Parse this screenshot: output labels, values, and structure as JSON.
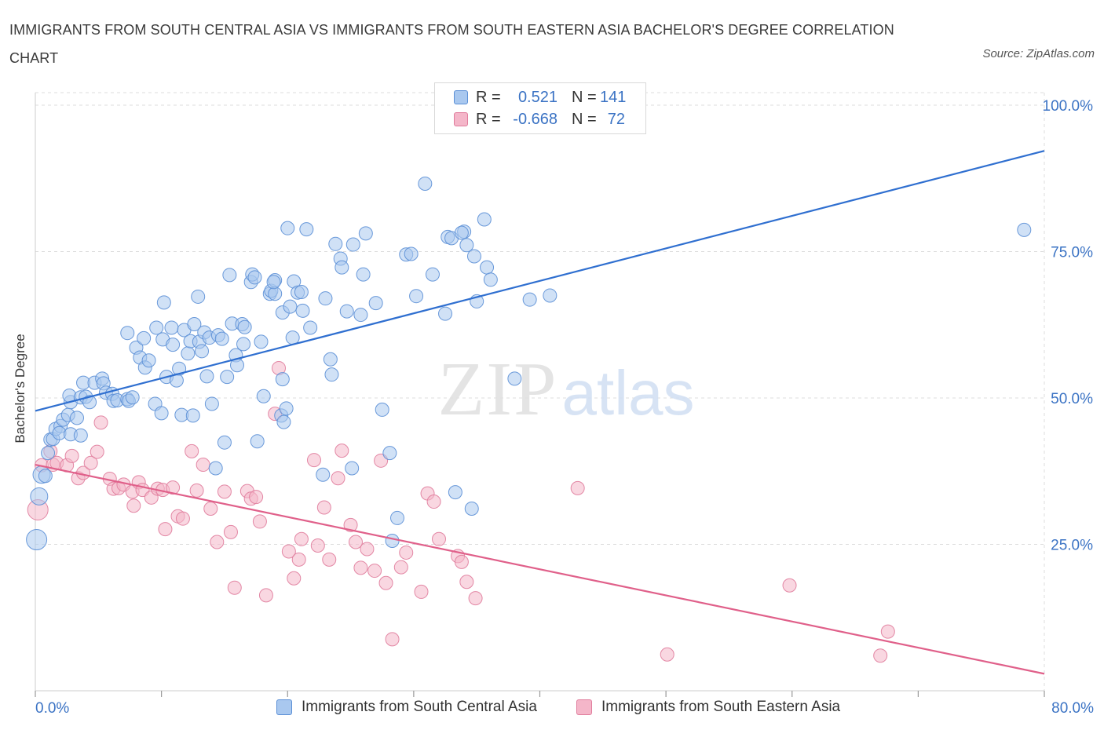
{
  "title": "IMMIGRANTS FROM SOUTH CENTRAL ASIA VS IMMIGRANTS FROM SOUTH EASTERN ASIA BACHELOR'S DEGREE CORRELATION CHART",
  "source": "Source: ZipAtlas.com",
  "watermark": {
    "zip": "ZIP",
    "atlas": "atlas"
  },
  "colors": {
    "blue_fill": "#a9c8ef",
    "blue_stroke": "#5b8fd6",
    "blue_line": "#2f6fd0",
    "blue_text": "#3b73c4",
    "pink_fill": "#f4b6c9",
    "pink_stroke": "#e07c9c",
    "pink_line": "#e0608a",
    "grid": "#dddddd",
    "axis": "#cccccc"
  },
  "legend_top": {
    "rows": [
      {
        "r_label": "R =",
        "r_value": "0.521",
        "n_label": "N =",
        "n_value": "141",
        "color": "blue"
      },
      {
        "r_label": "R =",
        "r_value": "-0.668",
        "n_label": "N =",
        "n_value": "72",
        "color": "pink"
      }
    ]
  },
  "legend_bottom": [
    {
      "label": "Immigrants from South Central Asia",
      "color": "blue"
    },
    {
      "label": "Immigrants from South Eastern Asia",
      "color": "pink"
    }
  ],
  "chart_data": {
    "type": "scatter",
    "title": "IMMIGRANTS FROM SOUTH CENTRAL ASIA VS IMMIGRANTS FROM SOUTH EASTERN ASIA BACHELOR'S DEGREE CORRELATION CHART",
    "xlabel": "",
    "ylabel": "Bachelor's Degree",
    "xlim": [
      0,
      80
    ],
    "ylim": [
      0,
      100
    ],
    "x_tick_labels": [
      {
        "value": 0,
        "label": "0.0%"
      },
      {
        "value": 80,
        "label": "80.0%"
      }
    ],
    "y_tick_labels": [
      {
        "value": 25,
        "label": "25.0%"
      },
      {
        "value": 50,
        "label": "50.0%"
      },
      {
        "value": 75,
        "label": "75.0%"
      },
      {
        "value": 100,
        "label": "100.0%"
      }
    ],
    "series": [
      {
        "name": "Immigrants from South Central Asia",
        "color": "blue",
        "trendline": [
          [
            0,
            47.8
          ],
          [
            80,
            92.2
          ]
        ],
        "points": [
          [
            0.1,
            25.8,
            3
          ],
          [
            0.3,
            33.2,
            2
          ],
          [
            0.5,
            36.9,
            2
          ],
          [
            0.8,
            36.7,
            1
          ],
          [
            1.0,
            40.6,
            1
          ],
          [
            1.2,
            42.9,
            1
          ],
          [
            1.4,
            43.0,
            1
          ],
          [
            1.6,
            44.7,
            1
          ],
          [
            2.0,
            45.2,
            1
          ],
          [
            2.2,
            46.3,
            1
          ],
          [
            1.9,
            44.0,
            1
          ],
          [
            2.6,
            47.1,
            1
          ],
          [
            2.8,
            43.8,
            1
          ],
          [
            3.3,
            46.6,
            1
          ],
          [
            3.6,
            43.6,
            1
          ],
          [
            2.8,
            49.3,
            1
          ],
          [
            2.7,
            50.4,
            1
          ],
          [
            3.6,
            50.1,
            1
          ],
          [
            3.8,
            52.6,
            1
          ],
          [
            4.0,
            50.2,
            1
          ],
          [
            4.3,
            49.3,
            1
          ],
          [
            4.7,
            52.6,
            1
          ],
          [
            5.3,
            53.3,
            1
          ],
          [
            5.4,
            52.5,
            1
          ],
          [
            5.6,
            50.9,
            1
          ],
          [
            6.1,
            50.7,
            1
          ],
          [
            6.2,
            49.5,
            1
          ],
          [
            6.5,
            49.6,
            1
          ],
          [
            7.3,
            49.8,
            1
          ],
          [
            7.4,
            49.5,
            1
          ],
          [
            7.7,
            50.1,
            1
          ],
          [
            8.0,
            58.6,
            1
          ],
          [
            7.3,
            61.1,
            1
          ],
          [
            8.3,
            56.9,
            1
          ],
          [
            8.7,
            55.2,
            1
          ],
          [
            8.6,
            60.2,
            1
          ],
          [
            9.0,
            56.4,
            1
          ],
          [
            9.5,
            49.0,
            1
          ],
          [
            9.6,
            62.0,
            1
          ],
          [
            10.1,
            60.0,
            1
          ],
          [
            10.0,
            47.4,
            1
          ],
          [
            10.2,
            66.3,
            1
          ],
          [
            10.4,
            53.6,
            1
          ],
          [
            10.8,
            62.0,
            1
          ],
          [
            10.9,
            59.1,
            1
          ],
          [
            11.4,
            55.0,
            1
          ],
          [
            11.2,
            53.0,
            1
          ],
          [
            11.6,
            47.1,
            1
          ],
          [
            11.8,
            61.6,
            1
          ],
          [
            12.1,
            57.6,
            1
          ],
          [
            12.3,
            59.7,
            1
          ],
          [
            12.5,
            47.0,
            1
          ],
          [
            12.6,
            62.6,
            1
          ],
          [
            12.9,
            67.3,
            1
          ],
          [
            13.0,
            59.6,
            1
          ],
          [
            13.2,
            58.0,
            1
          ],
          [
            13.4,
            61.2,
            1
          ],
          [
            13.6,
            53.7,
            1
          ],
          [
            13.8,
            60.3,
            1
          ],
          [
            14.0,
            49.0,
            1
          ],
          [
            14.3,
            38.0,
            1
          ],
          [
            14.5,
            60.7,
            1
          ],
          [
            14.8,
            60.1,
            1
          ],
          [
            15.0,
            42.4,
            1
          ],
          [
            15.2,
            53.6,
            1
          ],
          [
            15.4,
            71.0,
            1
          ],
          [
            15.6,
            62.7,
            1
          ],
          [
            15.9,
            57.3,
            1
          ],
          [
            16.0,
            55.6,
            1
          ],
          [
            16.4,
            62.6,
            1
          ],
          [
            16.5,
            59.2,
            1
          ],
          [
            16.6,
            62.1,
            1
          ],
          [
            17.1,
            69.8,
            1
          ],
          [
            17.2,
            71.1,
            1
          ],
          [
            17.4,
            70.6,
            1
          ],
          [
            17.6,
            42.6,
            1
          ],
          [
            17.9,
            59.6,
            1
          ],
          [
            18.1,
            50.3,
            1
          ],
          [
            18.6,
            67.8,
            1
          ],
          [
            18.7,
            68.3,
            1
          ],
          [
            19.0,
            70.1,
            1
          ],
          [
            19.0,
            67.8,
            1
          ],
          [
            18.9,
            69.8,
            1
          ],
          [
            19.5,
            47.0,
            1
          ],
          [
            19.6,
            64.6,
            1
          ],
          [
            19.6,
            53.2,
            1
          ],
          [
            19.7,
            45.9,
            1
          ],
          [
            20.0,
            79.0,
            1
          ],
          [
            19.9,
            48.2,
            1
          ],
          [
            20.2,
            65.6,
            1
          ],
          [
            20.4,
            60.3,
            1
          ],
          [
            20.5,
            69.9,
            1
          ],
          [
            20.8,
            68.0,
            1
          ],
          [
            21.1,
            68.1,
            1
          ],
          [
            21.2,
            64.9,
            1
          ],
          [
            21.5,
            78.8,
            1
          ],
          [
            21.8,
            62.0,
            1
          ],
          [
            22.8,
            36.9,
            1
          ],
          [
            23.0,
            67.0,
            1
          ],
          [
            23.4,
            56.6,
            1
          ],
          [
            23.5,
            54.0,
            1
          ],
          [
            23.8,
            76.3,
            1
          ],
          [
            24.2,
            73.8,
            1
          ],
          [
            24.3,
            72.3,
            1
          ],
          [
            24.7,
            64.8,
            1
          ],
          [
            25.1,
            38.0,
            1
          ],
          [
            25.2,
            76.2,
            1
          ],
          [
            25.8,
            64.2,
            1
          ],
          [
            26.0,
            71.1,
            1
          ],
          [
            26.2,
            78.1,
            1
          ],
          [
            27.0,
            66.2,
            1
          ],
          [
            27.5,
            48.0,
            1
          ],
          [
            28.1,
            40.6,
            1
          ],
          [
            28.3,
            25.6,
            1
          ],
          [
            28.7,
            29.5,
            1
          ],
          [
            29.4,
            74.5,
            1
          ],
          [
            29.8,
            74.6,
            1
          ],
          [
            30.2,
            67.4,
            1
          ],
          [
            30.9,
            86.6,
            1
          ],
          [
            31.5,
            71.1,
            1
          ],
          [
            32.5,
            64.4,
            1
          ],
          [
            32.7,
            77.5,
            1
          ],
          [
            33.0,
            77.3,
            1
          ],
          [
            33.3,
            33.9,
            1
          ],
          [
            34.0,
            78.4,
            1
          ],
          [
            33.8,
            78.2,
            1
          ],
          [
            34.2,
            76.1,
            1
          ],
          [
            34.6,
            31.1,
            1
          ],
          [
            34.8,
            74.2,
            1
          ],
          [
            35.0,
            66.5,
            1
          ],
          [
            35.6,
            80.5,
            1
          ],
          [
            35.8,
            72.3,
            1
          ],
          [
            36.1,
            70.2,
            1
          ],
          [
            38.0,
            53.3,
            1
          ],
          [
            39.2,
            66.8,
            1
          ],
          [
            40.8,
            67.5,
            1
          ],
          [
            78.4,
            78.7,
            1
          ]
        ]
      },
      {
        "name": "Immigrants from South Eastern Asia",
        "color": "pink",
        "trendline": [
          [
            0,
            38.6
          ],
          [
            80,
            2.9
          ]
        ],
        "points": [
          [
            0.2,
            30.9,
            3
          ],
          [
            0.5,
            38.5,
            1
          ],
          [
            1.2,
            40.9,
            1
          ],
          [
            1.4,
            38.6,
            1
          ],
          [
            1.7,
            38.9,
            1
          ],
          [
            2.5,
            38.5,
            1
          ],
          [
            2.9,
            40.1,
            1
          ],
          [
            3.4,
            36.3,
            1
          ],
          [
            3.8,
            37.2,
            1
          ],
          [
            4.4,
            38.9,
            1
          ],
          [
            4.9,
            40.8,
            1
          ],
          [
            5.2,
            45.8,
            1
          ],
          [
            5.9,
            36.2,
            1
          ],
          [
            6.2,
            34.5,
            1
          ],
          [
            6.6,
            34.6,
            1
          ],
          [
            7.0,
            35.2,
            1
          ],
          [
            7.7,
            34.0,
            1
          ],
          [
            7.8,
            31.6,
            1
          ],
          [
            8.2,
            35.6,
            1
          ],
          [
            8.5,
            34.3,
            1
          ],
          [
            9.2,
            33.0,
            1
          ],
          [
            9.7,
            34.5,
            1
          ],
          [
            10.1,
            34.3,
            1
          ],
          [
            10.3,
            27.6,
            1
          ],
          [
            10.9,
            34.7,
            1
          ],
          [
            11.3,
            29.8,
            1
          ],
          [
            11.7,
            29.4,
            1
          ],
          [
            12.4,
            40.9,
            1
          ],
          [
            12.8,
            34.2,
            1
          ],
          [
            13.3,
            38.6,
            1
          ],
          [
            13.9,
            31.1,
            1
          ],
          [
            14.4,
            25.4,
            1
          ],
          [
            15.0,
            34.0,
            1
          ],
          [
            15.5,
            27.1,
            1
          ],
          [
            15.8,
            17.6,
            1
          ],
          [
            16.8,
            34.1,
            1
          ],
          [
            17.1,
            32.8,
            1
          ],
          [
            17.5,
            33.1,
            1
          ],
          [
            17.8,
            28.9,
            1
          ],
          [
            18.3,
            16.3,
            1
          ],
          [
            19.0,
            47.3,
            1
          ],
          [
            19.3,
            55.1,
            1
          ],
          [
            20.1,
            23.8,
            1
          ],
          [
            20.5,
            19.2,
            1
          ],
          [
            20.9,
            22.4,
            1
          ],
          [
            21.1,
            25.9,
            1
          ],
          [
            22.1,
            39.4,
            1
          ],
          [
            22.4,
            24.8,
            1
          ],
          [
            22.9,
            31.3,
            1
          ],
          [
            23.3,
            22.4,
            1
          ],
          [
            24.0,
            36.3,
            1
          ],
          [
            24.3,
            41.0,
            1
          ],
          [
            25.0,
            28.3,
            1
          ],
          [
            25.4,
            25.4,
            1
          ],
          [
            25.8,
            21.0,
            1
          ],
          [
            26.3,
            24.2,
            1
          ],
          [
            26.9,
            20.5,
            1
          ],
          [
            27.4,
            39.3,
            1
          ],
          [
            27.8,
            18.4,
            1
          ],
          [
            28.3,
            8.8,
            1
          ],
          [
            29.0,
            21.1,
            1
          ],
          [
            29.4,
            23.6,
            1
          ],
          [
            30.6,
            16.9,
            1
          ],
          [
            31.1,
            33.7,
            1
          ],
          [
            31.6,
            32.3,
            1
          ],
          [
            32.0,
            25.9,
            1
          ],
          [
            33.5,
            23.0,
            1
          ],
          [
            33.8,
            22.0,
            1
          ],
          [
            34.2,
            18.6,
            1
          ],
          [
            34.9,
            15.8,
            1
          ],
          [
            43.0,
            34.6,
            1
          ],
          [
            50.1,
            6.2,
            1
          ],
          [
            59.8,
            18.0,
            1
          ],
          [
            67.0,
            6.0,
            1
          ],
          [
            67.6,
            10.1,
            1
          ]
        ]
      }
    ]
  }
}
